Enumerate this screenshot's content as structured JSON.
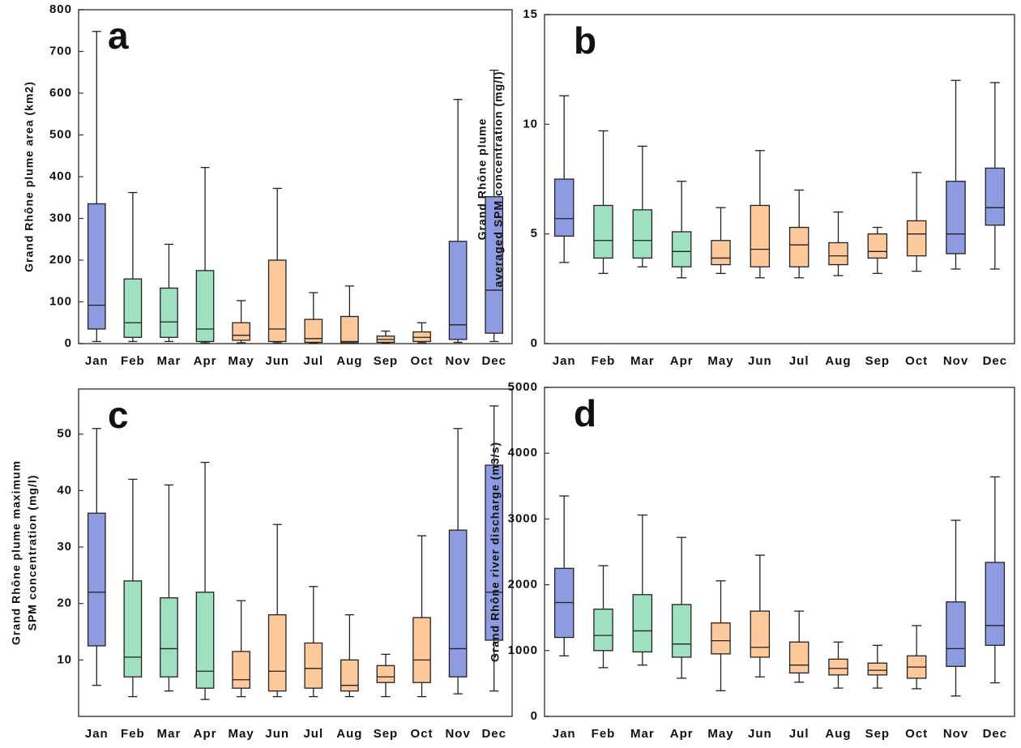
{
  "chart_data": [
    {
      "type": "box",
      "label": "a",
      "ylabel": [
        "Grand Rhône plume area (km2)"
      ],
      "categories": [
        "Jan",
        "Feb",
        "Mar",
        "Apr",
        "May",
        "Jun",
        "Jul",
        "Aug",
        "Sep",
        "Oct",
        "Nov",
        "Dec"
      ],
      "colors": [
        "#8e9be0",
        "#9ee0c0",
        "#9ee0c0",
        "#9ee0c0",
        "#fdc99a",
        "#fdc99a",
        "#fdc99a",
        "#fdc99a",
        "#fdc99a",
        "#fdc99a",
        "#8e9be0",
        "#8e9be0"
      ],
      "whisker_low": [
        5,
        5,
        5,
        2,
        2,
        2,
        1,
        1,
        1,
        2,
        3,
        5
      ],
      "q1": [
        35,
        15,
        15,
        5,
        8,
        5,
        3,
        2,
        3,
        5,
        10,
        25
      ],
      "median": [
        92,
        50,
        52,
        35,
        20,
        35,
        12,
        5,
        10,
        15,
        45,
        128
      ],
      "q3": [
        335,
        155,
        133,
        175,
        50,
        200,
        58,
        65,
        18,
        28,
        245,
        352
      ],
      "whisker_high": [
        748,
        362,
        238,
        422,
        103,
        372,
        122,
        138,
        30,
        50,
        585,
        655
      ],
      "ylim": [
        0,
        800
      ],
      "yticks": [
        0,
        100,
        200,
        300,
        400,
        500,
        600,
        700,
        800
      ]
    },
    {
      "type": "box",
      "label": "b",
      "ylabel": [
        "Grand Rhône plume",
        "averaged SPM concentration (mg/l)"
      ],
      "categories": [
        "Jan",
        "Feb",
        "Mar",
        "Apr",
        "May",
        "Jun",
        "Jul",
        "Aug",
        "Sep",
        "Oct",
        "Nov",
        "Dec"
      ],
      "colors": [
        "#8e9be0",
        "#9ee0c0",
        "#9ee0c0",
        "#9ee0c0",
        "#fdc99a",
        "#fdc99a",
        "#fdc99a",
        "#fdc99a",
        "#fdc99a",
        "#fdc99a",
        "#8e9be0",
        "#8e9be0"
      ],
      "whisker_low": [
        3.7,
        3.2,
        3.5,
        3.0,
        3.2,
        3.0,
        3.0,
        3.1,
        3.2,
        3.3,
        3.4,
        3.4
      ],
      "q1": [
        4.9,
        3.9,
        3.9,
        3.5,
        3.6,
        3.5,
        3.5,
        3.6,
        3.9,
        4.0,
        4.1,
        5.4
      ],
      "median": [
        5.7,
        4.7,
        4.7,
        4.2,
        3.9,
        4.3,
        4.5,
        4.0,
        4.2,
        5.0,
        5.0,
        6.2
      ],
      "q3": [
        7.5,
        6.3,
        6.1,
        5.1,
        4.7,
        6.3,
        5.3,
        4.6,
        5.0,
        5.6,
        7.4,
        8.0
      ],
      "whisker_high": [
        11.3,
        9.7,
        9.0,
        7.4,
        6.2,
        8.8,
        7.0,
        6.0,
        5.3,
        7.8,
        12.0,
        11.9
      ],
      "ylim": [
        0,
        15
      ],
      "yticks": [
        0,
        5,
        10,
        15
      ]
    },
    {
      "type": "box",
      "label": "c",
      "ylabel": [
        "Grand Rhône plume maximum",
        "SPM concentration (mg/l)"
      ],
      "categories": [
        "Jan",
        "Feb",
        "Mar",
        "Apr",
        "May",
        "Jun",
        "Jul",
        "Aug",
        "Sep",
        "Oct",
        "Nov",
        "Dec"
      ],
      "colors": [
        "#8e9be0",
        "#9ee0c0",
        "#9ee0c0",
        "#9ee0c0",
        "#fdc99a",
        "#fdc99a",
        "#fdc99a",
        "#fdc99a",
        "#fdc99a",
        "#fdc99a",
        "#8e9be0",
        "#8e9be0"
      ],
      "whisker_low": [
        5.5,
        3.5,
        4.5,
        3,
        3.5,
        3.5,
        3.5,
        3.5,
        3.5,
        3.5,
        4,
        4.5
      ],
      "q1": [
        12.5,
        7,
        7,
        5,
        5,
        4.5,
        5,
        4.5,
        6,
        6,
        7,
        13.5
      ],
      "median": [
        22,
        10.5,
        12,
        8,
        6.5,
        8,
        8.5,
        5.5,
        7,
        10,
        12,
        22
      ],
      "q3": [
        36,
        24,
        21,
        22,
        11.5,
        18,
        13,
        10,
        9,
        17.5,
        33,
        44.5
      ],
      "whisker_high": [
        51,
        42,
        41,
        45,
        20.5,
        34,
        23,
        18,
        11,
        32,
        51,
        55
      ],
      "ylim": [
        0,
        58
      ],
      "yticks": [
        10,
        20,
        30,
        40,
        50
      ]
    },
    {
      "type": "box",
      "label": "d",
      "ylabel": [
        "Grand Rhône river discharge (m3/s)"
      ],
      "categories": [
        "Jan",
        "Feb",
        "Mar",
        "Apr",
        "May",
        "Jun",
        "Jul",
        "Aug",
        "Sep",
        "Oct",
        "Nov",
        "Dec"
      ],
      "colors": [
        "#8e9be0",
        "#9ee0c0",
        "#9ee0c0",
        "#9ee0c0",
        "#fdc99a",
        "#fdc99a",
        "#fdc99a",
        "#fdc99a",
        "#fdc99a",
        "#fdc99a",
        "#8e9be0",
        "#8e9be0"
      ],
      "whisker_low": [
        920,
        740,
        780,
        580,
        390,
        600,
        520,
        430,
        430,
        420,
        310,
        510
      ],
      "q1": [
        1200,
        1000,
        980,
        900,
        950,
        900,
        660,
        630,
        630,
        580,
        760,
        1080
      ],
      "median": [
        1730,
        1230,
        1300,
        1100,
        1150,
        1050,
        780,
        730,
        700,
        750,
        1030,
        1380
      ],
      "q3": [
        2250,
        1630,
        1850,
        1700,
        1420,
        1600,
        1130,
        870,
        810,
        920,
        1740,
        2340
      ],
      "whisker_high": [
        3350,
        2290,
        3060,
        2720,
        2060,
        2450,
        1600,
        1130,
        1080,
        1380,
        2980,
        3640
      ],
      "ylim": [
        0,
        5000
      ],
      "yticks": [
        0,
        1000,
        2000,
        3000,
        4000,
        5000
      ]
    }
  ]
}
